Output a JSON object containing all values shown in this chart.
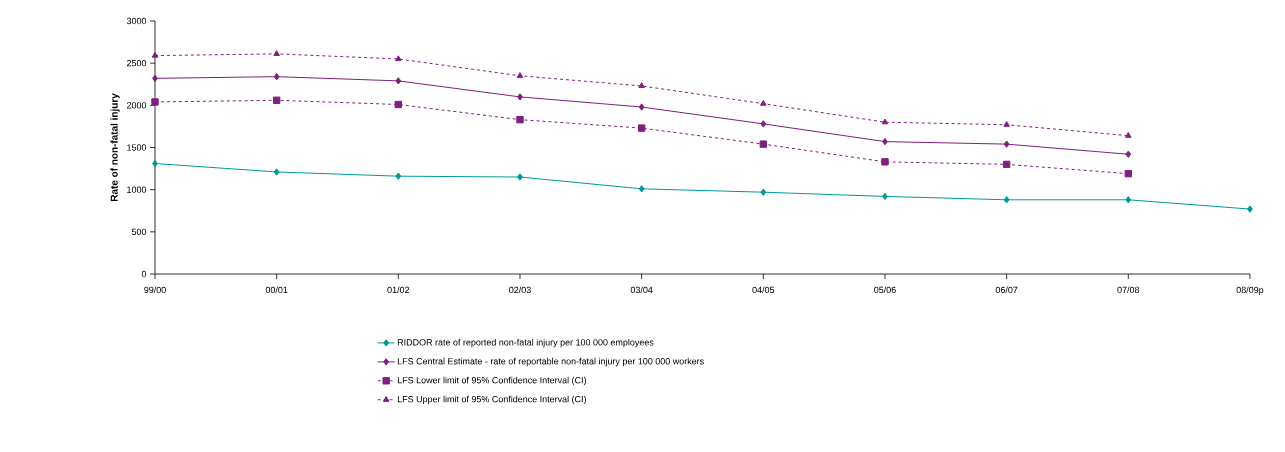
{
  "chart_data": {
    "type": "line",
    "ylabel": "Rate of non-fatal injury",
    "categories": [
      "99/00",
      "00/01",
      "01/02",
      "02/03",
      "03/04",
      "04/05",
      "05/06",
      "06/07",
      "07/08",
      "08/09p"
    ],
    "ylim": [
      0,
      3000
    ],
    "yticks": [
      0,
      500,
      1000,
      1500,
      2000,
      2500,
      3000
    ],
    "grid": false,
    "legend": "bottom",
    "series": [
      {
        "name": "RIDDOR rate of reported non-fatal injury per 100 000 employees",
        "color": "#009999",
        "marker": "diamond",
        "line_style": "solid",
        "values": [
          1310,
          1210,
          1160,
          1150,
          1010,
          970,
          920,
          880,
          880,
          770
        ]
      },
      {
        "name": "LFS Central Estimate - rate of reportable non-fatal injury per 100 000 workers",
        "color": "#7f1f7f",
        "marker": "diamond",
        "line_style": "solid",
        "values": [
          2320,
          2340,
          2290,
          2100,
          1980,
          1780,
          1570,
          1540,
          1420,
          null
        ]
      },
      {
        "name": "LFS Lower limit of 95% Confidence Interval (CI)",
        "color": "#7f1f7f",
        "marker": "square",
        "line_style": "dashed",
        "values": [
          2040,
          2060,
          2010,
          1830,
          1730,
          1540,
          1330,
          1300,
          1190,
          null
        ]
      },
      {
        "name": "LFS Upper limit of 95% Confidence Interval (CI)",
        "color": "#7f1f7f",
        "marker": "triangle",
        "line_style": "dashed",
        "values": [
          2590,
          2610,
          2550,
          2350,
          2230,
          2020,
          1800,
          1770,
          1640,
          null
        ]
      }
    ]
  }
}
